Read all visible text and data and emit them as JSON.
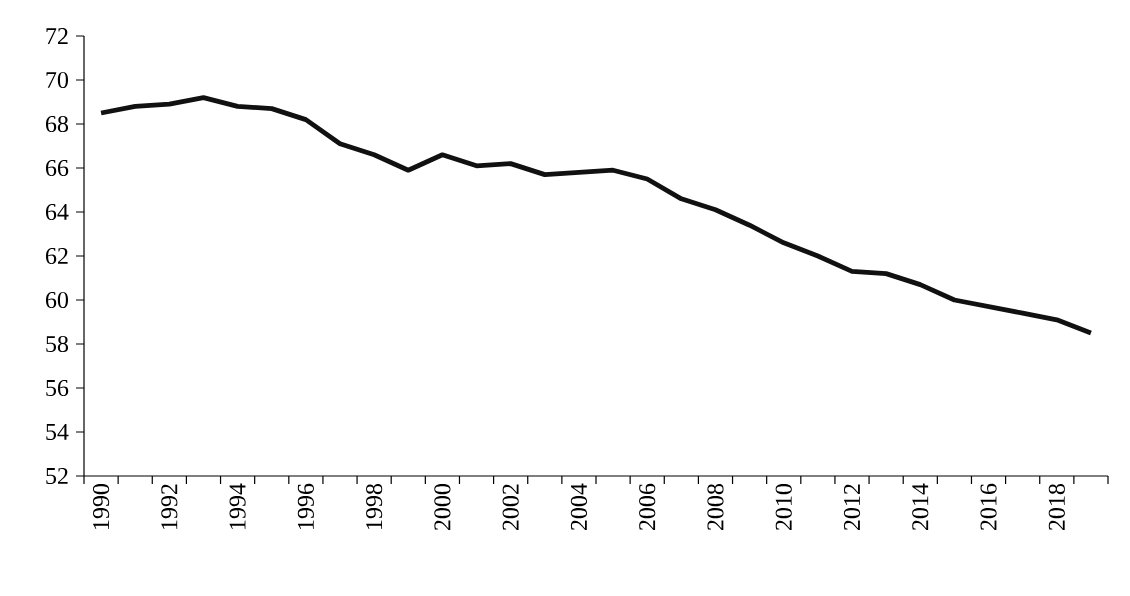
{
  "chart_data": {
    "type": "line",
    "categories": [
      "1990",
      null,
      "1992",
      null,
      "1994",
      null,
      "1996",
      null,
      "1998",
      null,
      "2000",
      null,
      "2002",
      null,
      "2004",
      null,
      "2006",
      null,
      "2008",
      null,
      "2010",
      null,
      "2012",
      null,
      "2014",
      null,
      "2016",
      null,
      "2018",
      null
    ],
    "series": [
      {
        "color": "#111111",
        "values": [
          68.5,
          68.8,
          68.9,
          69.2,
          68.8,
          68.7,
          68.2,
          67.1,
          66.6,
          65.9,
          66.6,
          66.1,
          66.2,
          65.7,
          65.8,
          65.9,
          65.5,
          64.6,
          64.1,
          63.4,
          62.6,
          62.0,
          61.3,
          61.2,
          60.7,
          60.0,
          59.7,
          59.4,
          59.1,
          58.5
        ]
      }
    ],
    "ylim": [
      52,
      72
    ],
    "yticks": [
      52,
      54,
      56,
      58,
      60,
      62,
      64,
      66,
      68,
      70,
      72
    ],
    "grid": false,
    "marker": "none",
    "line_style": "solid"
  }
}
